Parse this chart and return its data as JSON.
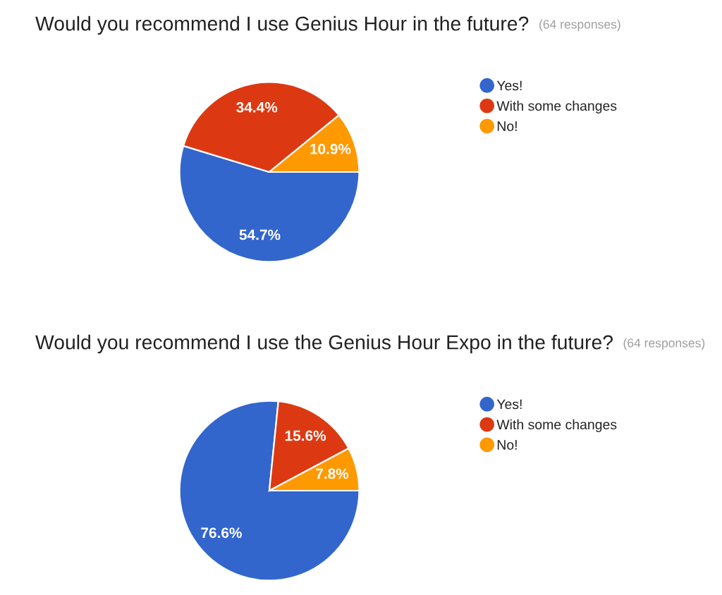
{
  "chart_data": [
    {
      "type": "pie",
      "title": "Would you recommend I use Genius Hour in the future?",
      "subtitle": "(64 responses)",
      "categories": [
        "Yes!",
        "With some changes",
        "No!"
      ],
      "values": [
        54.7,
        34.4,
        10.9
      ],
      "colors": [
        "#3366cc",
        "#dc3912",
        "#ff9900"
      ],
      "value_labels": [
        "54.7%",
        "34.4%",
        "10.9%"
      ],
      "legend": "right"
    },
    {
      "type": "pie",
      "title": "Would you recommend I use the Genius Hour Expo in the future?",
      "subtitle": "(64 responses)",
      "categories": [
        "Yes!",
        "With some changes",
        "No!"
      ],
      "values": [
        76.6,
        15.6,
        7.8
      ],
      "colors": [
        "#3366cc",
        "#dc3912",
        "#ff9900"
      ],
      "value_labels": [
        "76.6%",
        "15.6%",
        "7.8%"
      ],
      "legend": "right"
    }
  ]
}
